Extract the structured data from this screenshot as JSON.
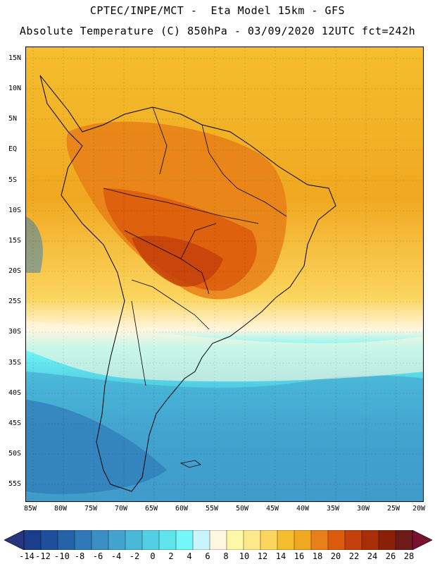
{
  "header": {
    "line1": "CPTEC/INPE/MCT -  Eta Model 15km - GFS",
    "line2": "Absolute Temperature (C) 850hPa - 03/09/2020 12UTC fct=242h"
  },
  "map": {
    "lat_labels": [
      "15N",
      "10N",
      "5N",
      "EQ",
      "5S",
      "10S",
      "15S",
      "20S",
      "25S",
      "30S",
      "35S",
      "40S",
      "45S",
      "50S",
      "55S"
    ],
    "lon_labels": [
      "85W",
      "80W",
      "75W",
      "70W",
      "65W",
      "60W",
      "55W",
      "50W",
      "45W",
      "40W",
      "35W",
      "30W",
      "25W",
      "20W"
    ]
  },
  "colorbar": {
    "labels": [
      "-14",
      "-12",
      "-10",
      "-8",
      "-6",
      "-4",
      "-2",
      "0",
      "2",
      "4",
      "6",
      "8",
      "10",
      "12",
      "14",
      "16",
      "18",
      "20",
      "22",
      "24",
      "26",
      "28"
    ],
    "colors": [
      "#1a3d8c",
      "#1f4e9c",
      "#2563a9",
      "#2f79b8",
      "#3a8fc4",
      "#42a3cf",
      "#4ab8d9",
      "#52cfe3",
      "#5fe4ee",
      "#73f7f7",
      "#c8f4fb",
      "#fff6e0",
      "#fff7a8",
      "#ffe98a",
      "#fbd55e",
      "#f4be2e",
      "#f0a820",
      "#e87f18",
      "#dc5a0c",
      "#c4420a",
      "#a82e08",
      "#8a2008",
      "#6e1a1a"
    ],
    "end_colors": [
      "#2a3580",
      "#7a1030"
    ]
  }
}
